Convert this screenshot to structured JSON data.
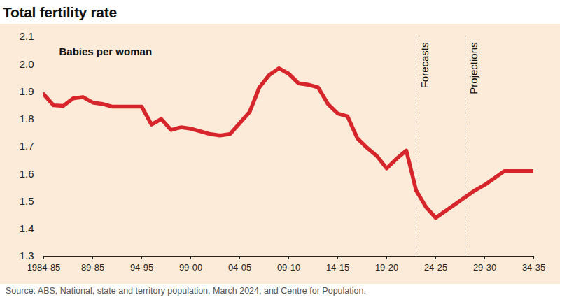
{
  "chart_data": {
    "type": "line",
    "title": "Total fertility rate",
    "source": "Source: ABS, National, state and territory population, March 2024; and Centre for Population.",
    "categories": [
      "1984-85",
      null,
      null,
      null,
      null,
      "89-85",
      null,
      null,
      null,
      null,
      "94-95",
      null,
      null,
      null,
      null,
      "99-00",
      null,
      null,
      null,
      null,
      "04-05",
      null,
      null,
      null,
      null,
      "09-10",
      null,
      null,
      null,
      null,
      "14-15",
      null,
      null,
      null,
      null,
      "19-20",
      null,
      null,
      null,
      null,
      "24-25",
      null,
      null,
      null,
      null,
      "29-30",
      null,
      null,
      null,
      null,
      "34-35"
    ],
    "series": [
      {
        "name": "Total fertility rate",
        "color": "#d7262b",
        "values": [
          1.89,
          1.85,
          1.848,
          1.875,
          1.88,
          1.86,
          1.855,
          1.845,
          1.845,
          1.845,
          1.845,
          1.78,
          1.8,
          1.76,
          1.77,
          1.765,
          1.755,
          1.745,
          1.74,
          1.745,
          1.785,
          1.825,
          1.915,
          1.96,
          1.985,
          1.965,
          1.93,
          1.925,
          1.915,
          1.855,
          1.82,
          1.81,
          1.73,
          1.695,
          1.665,
          1.62,
          1.655,
          1.685,
          1.54,
          1.48,
          1.44,
          1.465,
          1.49,
          1.515,
          1.54,
          1.56,
          1.585,
          1.61,
          1.61,
          1.61,
          1.61
        ]
      }
    ],
    "annotations": [
      {
        "text": "Babies per woman"
      },
      {
        "text": "Forecasts",
        "position": 38,
        "line_style": "dashed"
      },
      {
        "text": "Projections",
        "position": 43,
        "line_style": "dashed"
      }
    ],
    "ylim": [
      1.3,
      2.1
    ],
    "yticks": [
      1.3,
      1.4,
      1.5,
      1.6,
      1.7,
      1.8,
      1.9,
      {
        "value": 2,
        "label": "2.0"
      },
      2.1
    ],
    "grid": false
  }
}
